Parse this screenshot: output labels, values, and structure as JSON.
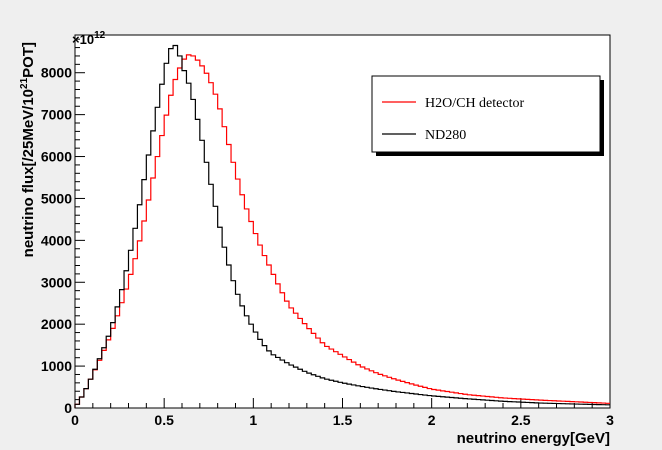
{
  "chart_data": {
    "type": "line",
    "style": "step-histogram",
    "xlabel": "neutrino energy[GeV]",
    "ylabel": {
      "prefix": "neutrino flux[/25MeV/10",
      "exponent": "21",
      "suffix": "POT]"
    },
    "y_multiplier": {
      "base": "×10",
      "exponent": "12"
    },
    "xlim": [
      0,
      3
    ],
    "ylim": [
      0,
      8900
    ],
    "x_ticks": [
      {
        "value": 0,
        "label": "0"
      },
      {
        "value": 0.5,
        "label": "0.5"
      },
      {
        "value": 1,
        "label": "1"
      },
      {
        "value": 1.5,
        "label": "1.5"
      },
      {
        "value": 2,
        "label": "2"
      },
      {
        "value": 2.5,
        "label": "2.5"
      },
      {
        "value": 3,
        "label": "3"
      }
    ],
    "y_ticks": [
      {
        "value": 0,
        "label": "0"
      },
      {
        "value": 1000,
        "label": "1000"
      },
      {
        "value": 2000,
        "label": "2000"
      },
      {
        "value": 3000,
        "label": "3000"
      },
      {
        "value": 4000,
        "label": "4000"
      },
      {
        "value": 5000,
        "label": "5000"
      },
      {
        "value": 6000,
        "label": "6000"
      },
      {
        "value": 7000,
        "label": "7000"
      },
      {
        "value": 8000,
        "label": "8000"
      }
    ],
    "bin_width": 0.025,
    "legend_position": "top-right",
    "series": [
      {
        "name": "H2O/CH detector",
        "color": "#ff0000",
        "points": [
          [
            0.0,
            0
          ],
          [
            0.05,
            350
          ],
          [
            0.1,
            800
          ],
          [
            0.15,
            1250
          ],
          [
            0.2,
            1750
          ],
          [
            0.25,
            2350
          ],
          [
            0.3,
            3000
          ],
          [
            0.35,
            3750
          ],
          [
            0.4,
            4700
          ],
          [
            0.45,
            5750
          ],
          [
            0.5,
            6750
          ],
          [
            0.55,
            7700
          ],
          [
            0.6,
            8250
          ],
          [
            0.625,
            8400
          ],
          [
            0.65,
            8450
          ],
          [
            0.7,
            8250
          ],
          [
            0.75,
            7900
          ],
          [
            0.8,
            7350
          ],
          [
            0.85,
            6500
          ],
          [
            0.9,
            5650
          ],
          [
            0.95,
            4900
          ],
          [
            1.0,
            4300
          ],
          [
            1.05,
            3750
          ],
          [
            1.1,
            3300
          ],
          [
            1.15,
            2850
          ],
          [
            1.2,
            2450
          ],
          [
            1.3,
            1950
          ],
          [
            1.4,
            1500
          ],
          [
            1.5,
            1250
          ],
          [
            1.6,
            1000
          ],
          [
            1.7,
            820
          ],
          [
            1.8,
            680
          ],
          [
            1.9,
            560
          ],
          [
            2.0,
            450
          ],
          [
            2.2,
            320
          ],
          [
            2.4,
            240
          ],
          [
            2.6,
            190
          ],
          [
            2.8,
            150
          ],
          [
            3.0,
            110
          ]
        ]
      },
      {
        "name": "ND280",
        "color": "#000000",
        "points": [
          [
            0.0,
            0
          ],
          [
            0.05,
            350
          ],
          [
            0.1,
            800
          ],
          [
            0.15,
            1300
          ],
          [
            0.2,
            1850
          ],
          [
            0.25,
            2600
          ],
          [
            0.3,
            3500
          ],
          [
            0.35,
            4550
          ],
          [
            0.4,
            5750
          ],
          [
            0.45,
            6900
          ],
          [
            0.5,
            8000
          ],
          [
            0.525,
            8450
          ],
          [
            0.55,
            8700
          ],
          [
            0.575,
            8600
          ],
          [
            0.6,
            8200
          ],
          [
            0.65,
            7600
          ],
          [
            0.7,
            6650
          ],
          [
            0.75,
            5600
          ],
          [
            0.8,
            4550
          ],
          [
            0.85,
            3600
          ],
          [
            0.9,
            2850
          ],
          [
            0.95,
            2300
          ],
          [
            1.0,
            1900
          ],
          [
            1.05,
            1550
          ],
          [
            1.1,
            1300
          ],
          [
            1.2,
            1050
          ],
          [
            1.3,
            850
          ],
          [
            1.4,
            700
          ],
          [
            1.5,
            600
          ],
          [
            1.6,
            520
          ],
          [
            1.7,
            450
          ],
          [
            1.8,
            390
          ],
          [
            1.9,
            340
          ],
          [
            2.0,
            290
          ],
          [
            2.2,
            220
          ],
          [
            2.4,
            160
          ],
          [
            2.6,
            120
          ],
          [
            2.8,
            95
          ],
          [
            3.0,
            75
          ]
        ]
      }
    ]
  }
}
